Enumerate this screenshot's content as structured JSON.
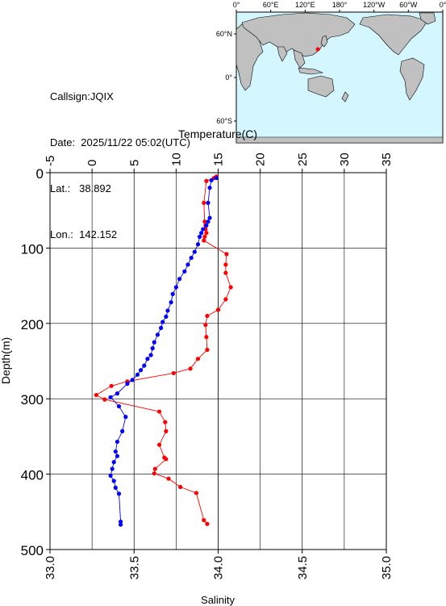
{
  "station": {
    "callsign": "Callsign:JQIX",
    "date": "Date:  2025/11/22 05:02(UTC)",
    "lat": "Lat.:   38.892",
    "lon": "Lon.:  142.152"
  },
  "map": {
    "top_ticks": [
      "0°",
      "60°E",
      "120°E",
      "180°",
      "120°W",
      "60°W",
      "0°"
    ],
    "left_ticks": [
      "60°N",
      "0°",
      "60°S"
    ],
    "ocean_color": "#d4f7ff",
    "land_color": "#c0c0c0",
    "marker_color": "#ff0000",
    "marker": {
      "lon_deg_east": 142.152,
      "lat_deg": 38.892
    }
  },
  "chart_data": {
    "type": "line",
    "ylabel": "Depth(m)",
    "ylim": [
      0,
      500
    ],
    "y_ticks": [
      "0",
      "100",
      "200",
      "300",
      "400",
      "500"
    ],
    "top_axis": {
      "label": "Temperature(C)",
      "range": [
        -5,
        35
      ],
      "ticks": [
        "-5",
        "0",
        "5",
        "10",
        "15",
        "20",
        "25",
        "30",
        "35"
      ]
    },
    "bottom_axis": {
      "label": "Salinity",
      "range": [
        33.0,
        35.0
      ],
      "ticks": [
        "33.0",
        "33.5",
        "34.0",
        "34.5",
        "35.0"
      ]
    },
    "grid": true,
    "series": [
      {
        "axis": "top",
        "color": "#ff0000",
        "points": [
          [
            14.8,
            5
          ],
          [
            14.5,
            7
          ],
          [
            13.6,
            11
          ],
          [
            13.3,
            40
          ],
          [
            13.4,
            65
          ],
          [
            13.5,
            70
          ],
          [
            13.5,
            75
          ],
          [
            13.6,
            80
          ],
          [
            13.4,
            85
          ],
          [
            13.3,
            90
          ],
          [
            16.0,
            108
          ],
          [
            15.9,
            122
          ],
          [
            15.9,
            133
          ],
          [
            16.5,
            152
          ],
          [
            15.9,
            168
          ],
          [
            15.0,
            182
          ],
          [
            13.7,
            190
          ],
          [
            13.5,
            202
          ],
          [
            13.6,
            218
          ],
          [
            13.7,
            235
          ],
          [
            12.6,
            247
          ],
          [
            11.7,
            260
          ],
          [
            9.7,
            266
          ],
          [
            4.2,
            277
          ],
          [
            2.3,
            283
          ],
          [
            0.5,
            295
          ],
          [
            1.5,
            301
          ],
          [
            8.0,
            317
          ],
          [
            8.7,
            331
          ],
          [
            8.8,
            343
          ],
          [
            8.0,
            361
          ],
          [
            8.6,
            378
          ],
          [
            8.8,
            380
          ],
          [
            7.5,
            393
          ],
          [
            7.4,
            399
          ],
          [
            9.1,
            406
          ],
          [
            10.5,
            417
          ],
          [
            12.4,
            425
          ],
          [
            13.3,
            461
          ],
          [
            13.7,
            466
          ]
        ]
      },
      {
        "axis": "bottom",
        "color": "#0000ff",
        "points": [
          [
            33.99,
            7
          ],
          [
            33.96,
            10
          ],
          [
            33.95,
            20
          ],
          [
            33.94,
            40
          ],
          [
            33.95,
            60
          ],
          [
            33.94,
            65
          ],
          [
            33.93,
            70
          ],
          [
            33.91,
            75
          ],
          [
            33.9,
            80
          ],
          [
            33.89,
            85
          ],
          [
            33.88,
            95
          ],
          [
            33.86,
            105
          ],
          [
            33.84,
            113
          ],
          [
            33.82,
            122
          ],
          [
            33.8,
            131
          ],
          [
            33.77,
            141
          ],
          [
            33.75,
            152
          ],
          [
            33.73,
            161
          ],
          [
            33.72,
            172
          ],
          [
            33.7,
            183
          ],
          [
            33.69,
            191
          ],
          [
            33.67,
            198
          ],
          [
            33.66,
            206
          ],
          [
            33.64,
            215
          ],
          [
            33.62,
            225
          ],
          [
            33.61,
            233
          ],
          [
            33.6,
            242
          ],
          [
            33.58,
            247
          ],
          [
            33.56,
            256
          ],
          [
            33.54,
            262
          ],
          [
            33.52,
            268
          ],
          [
            33.49,
            275
          ],
          [
            33.46,
            280
          ],
          [
            33.4,
            293
          ],
          [
            33.36,
            298
          ],
          [
            33.41,
            310
          ],
          [
            33.45,
            324
          ],
          [
            33.43,
            343
          ],
          [
            33.4,
            357
          ],
          [
            33.39,
            370
          ],
          [
            33.4,
            376
          ],
          [
            33.38,
            384
          ],
          [
            33.37,
            393
          ],
          [
            33.36,
            402
          ],
          [
            33.38,
            409
          ],
          [
            33.39,
            418
          ],
          [
            33.41,
            426
          ],
          [
            33.42,
            463
          ],
          [
            33.42,
            467
          ]
        ]
      }
    ]
  }
}
